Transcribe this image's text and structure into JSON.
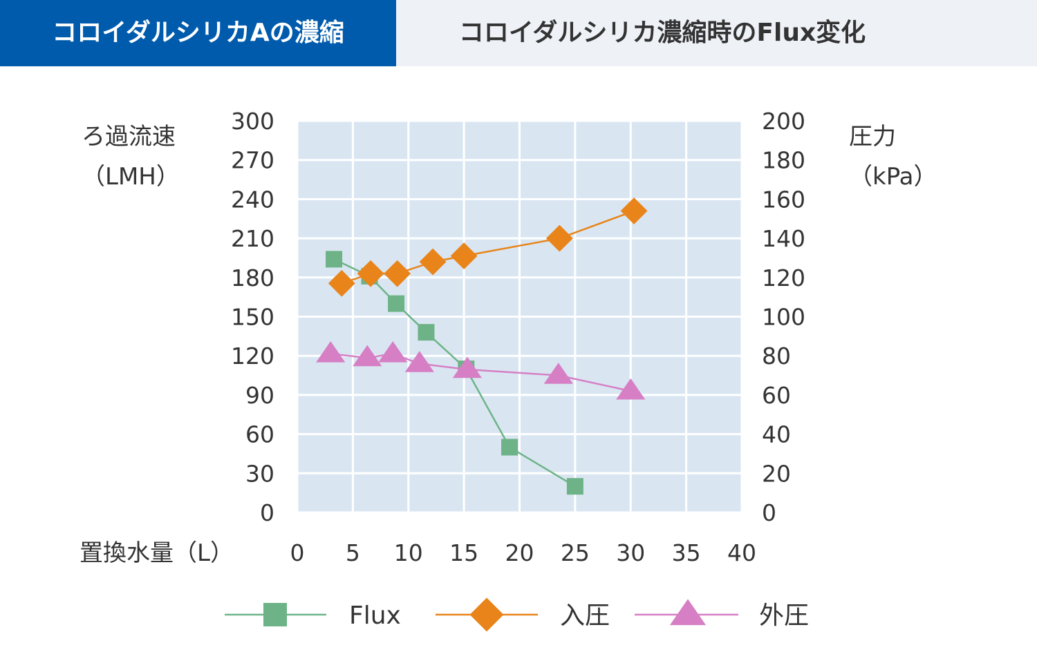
{
  "tabs": {
    "active_label": "コロイダルシリカAの濃縮",
    "title": "コロイダルシリカ濃縮時のFlux変化"
  },
  "chart_data": {
    "type": "line",
    "title": "",
    "y_left": {
      "label_line1": "ろ過流速",
      "label_line2": "（LMH）",
      "range": [
        0,
        300
      ],
      "ticks": [
        "0",
        "30",
        "60",
        "90",
        "120",
        "150",
        "180",
        "210",
        "240",
        "270",
        "300"
      ]
    },
    "y_right": {
      "label_line1": "圧力",
      "label_line2": "（kPa）",
      "range": [
        0,
        200
      ],
      "ticks": [
        "0",
        "20",
        "40",
        "60",
        "80",
        "100",
        "120",
        "140",
        "160",
        "180",
        "200"
      ]
    },
    "x": {
      "label": "置換水量（L）",
      "range": [
        0,
        40
      ],
      "ticks": [
        "0",
        "5",
        "10",
        "15",
        "20",
        "25",
        "30",
        "35",
        "40"
      ]
    },
    "plot_background": "#d9e6f2",
    "grid": true,
    "legend_position": "bottom",
    "series": [
      {
        "name": "Flux",
        "axis": "left",
        "marker": "square",
        "color": "#6db387",
        "points": [
          [
            3.3,
            194
          ],
          [
            6.5,
            181
          ],
          [
            8.9,
            160
          ],
          [
            11.6,
            138
          ],
          [
            15.2,
            110
          ],
          [
            19.1,
            50
          ],
          [
            25.0,
            20
          ]
        ]
      },
      {
        "name": "入圧",
        "axis": "right",
        "marker": "diamond",
        "color": "#e8841a",
        "points": [
          [
            4.0,
            117
          ],
          [
            6.6,
            122
          ],
          [
            9.0,
            122
          ],
          [
            12.2,
            128
          ],
          [
            15.0,
            131
          ],
          [
            23.6,
            140
          ],
          [
            30.3,
            154
          ]
        ]
      },
      {
        "name": "外圧",
        "axis": "right",
        "marker": "triangle",
        "color": "#d67fc4",
        "points": [
          [
            3.0,
            81
          ],
          [
            6.3,
            79
          ],
          [
            8.6,
            81
          ],
          [
            11.0,
            76
          ],
          [
            15.3,
            73
          ],
          [
            23.5,
            70
          ],
          [
            30.0,
            62
          ]
        ]
      }
    ]
  }
}
